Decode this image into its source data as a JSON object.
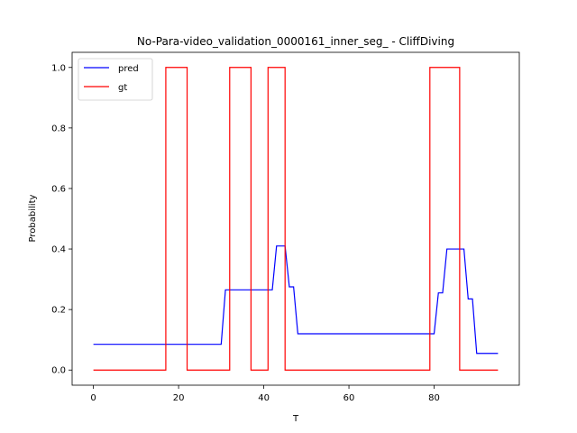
{
  "chart_data": {
    "type": "line",
    "title": "No-Para-video_validation_0000161_inner_seg_ - CliffDiving",
    "xlabel": "T",
    "ylabel": "Probability",
    "xlim": [
      -5,
      100
    ],
    "ylim": [
      -0.05,
      1.05
    ],
    "xticks": [
      0,
      20,
      40,
      60,
      80
    ],
    "yticks": [
      0.0,
      0.2,
      0.4,
      0.6,
      0.8,
      1.0
    ],
    "xtick_labels": [
      "0",
      "20",
      "40",
      "60",
      "80"
    ],
    "ytick_labels": [
      "0.0",
      "0.2",
      "0.4",
      "0.6",
      "0.8",
      "1.0"
    ],
    "grid": false,
    "legend_position": "top-left",
    "series": [
      {
        "name": "pred",
        "color": "#0000ff",
        "x": [
          0,
          30,
          31,
          42,
          43,
          45,
          46,
          47,
          48,
          80,
          81,
          82,
          83,
          87,
          88,
          89,
          90,
          95
        ],
        "y": [
          0.085,
          0.085,
          0.265,
          0.265,
          0.41,
          0.41,
          0.275,
          0.275,
          0.12,
          0.12,
          0.255,
          0.255,
          0.4,
          0.4,
          0.235,
          0.235,
          0.055,
          0.055
        ]
      },
      {
        "name": "gt",
        "color": "#ff0000",
        "x": [
          0,
          17,
          17,
          22,
          22,
          32,
          32,
          37,
          37,
          41,
          41,
          45,
          45,
          79,
          79,
          86,
          86,
          95
        ],
        "y": [
          0,
          0,
          1,
          1,
          0,
          0,
          1,
          1,
          0,
          0,
          1,
          1,
          0,
          0,
          1,
          1,
          0,
          0
        ]
      }
    ]
  }
}
